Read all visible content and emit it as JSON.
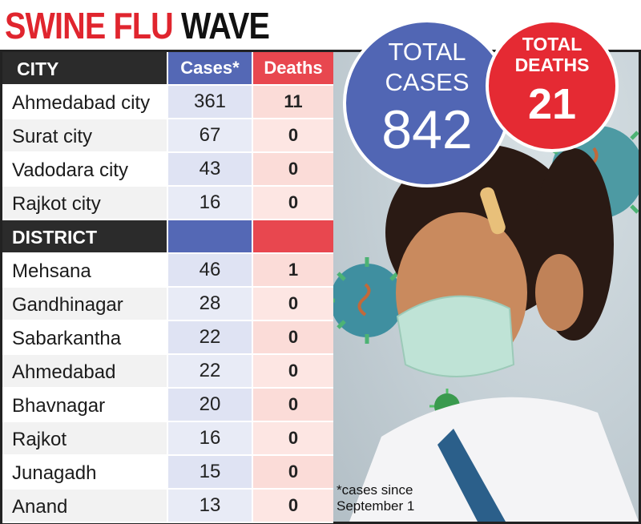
{
  "title": {
    "part1": "SWINE FLU",
    "part2": "WAVE"
  },
  "table": {
    "header": {
      "group": "CITY",
      "cases": "Cases*",
      "deaths": "Deaths"
    },
    "district_header": "DISTRICT"
  },
  "totals": {
    "cases_line1": "TOTAL",
    "cases_line2": "CASES",
    "cases_value": "842",
    "deaths_line1": "TOTAL",
    "deaths_line2": "DEATHS",
    "deaths_value": "21"
  },
  "footnote": {
    "line1": "*cases since",
    "line2": "September 1"
  },
  "colors": {
    "title_red": "#e0252e",
    "cases_blue": "#5468b5",
    "deaths_red": "#e8474f",
    "header_dark": "#2b2b2b"
  },
  "chart_data": {
    "type": "table",
    "title": "SWINE FLU WAVE",
    "columns": [
      "Cases*",
      "Deaths"
    ],
    "groups": [
      {
        "name": "CITY",
        "rows": [
          {
            "name": "Ahmedabad city",
            "cases": 361,
            "deaths": 11
          },
          {
            "name": "Surat city",
            "cases": 67,
            "deaths": 0
          },
          {
            "name": "Vadodara city",
            "cases": 43,
            "deaths": 0
          },
          {
            "name": "Rajkot city",
            "cases": 16,
            "deaths": 0
          }
        ]
      },
      {
        "name": "DISTRICT",
        "rows": [
          {
            "name": "Mehsana",
            "cases": 46,
            "deaths": 1
          },
          {
            "name": "Gandhinagar",
            "cases": 28,
            "deaths": 0
          },
          {
            "name": "Sabarkantha",
            "cases": 22,
            "deaths": 0
          },
          {
            "name": "Ahmedabad",
            "cases": 22,
            "deaths": 0
          },
          {
            "name": "Bhavnagar",
            "cases": 20,
            "deaths": 0
          },
          {
            "name": "Rajkot",
            "cases": 16,
            "deaths": 0
          },
          {
            "name": "Junagadh",
            "cases": 15,
            "deaths": 0
          },
          {
            "name": "Anand",
            "cases": 13,
            "deaths": 0
          }
        ]
      }
    ],
    "totals": {
      "cases": 842,
      "deaths": 21
    }
  }
}
